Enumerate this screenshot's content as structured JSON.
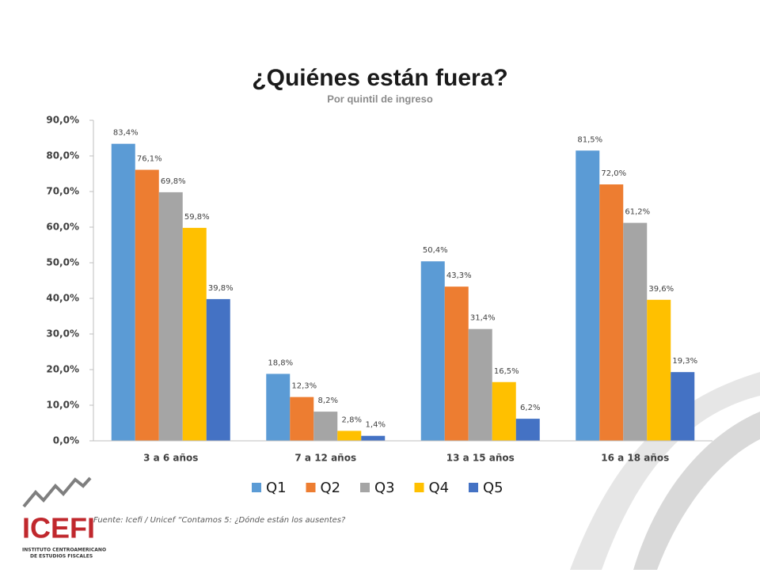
{
  "chart_data": {
    "type": "bar",
    "title": "¿Quiénes están fuera?",
    "subtitle": "Por quintil de ingreso",
    "categories": [
      "3 a 6 años",
      "7 a 12 años",
      "13 a 15 años",
      "16 a 18 años"
    ],
    "series": [
      {
        "name": "Q1",
        "color": "#5b9bd5",
        "values": [
          83.4,
          18.8,
          50.4,
          81.5
        ],
        "value_labels": [
          "83,4%",
          "18,8%",
          "50,4%",
          "81,5%"
        ]
      },
      {
        "name": "Q2",
        "color": "#ed7d31",
        "values": [
          76.1,
          12.3,
          43.3,
          72.0
        ],
        "value_labels": [
          "76,1%",
          "12,3%",
          "43,3%",
          "72,0%"
        ]
      },
      {
        "name": "Q3",
        "color": "#a5a5a5",
        "values": [
          69.8,
          8.2,
          31.4,
          61.2
        ],
        "value_labels": [
          "69,8%",
          "8,2%",
          "31,4%",
          "61,2%"
        ]
      },
      {
        "name": "Q4",
        "color": "#ffc000",
        "values": [
          59.8,
          2.8,
          16.5,
          39.6
        ],
        "value_labels": [
          "59,8%",
          "2,8%",
          "16,5%",
          "39,6%"
        ]
      },
      {
        "name": "Q5",
        "color": "#4472c4",
        "values": [
          39.8,
          1.4,
          6.2,
          19.3
        ],
        "value_labels": [
          "39,8%",
          "1,4%",
          "6,2%",
          "19,3%"
        ]
      }
    ],
    "ylim": [
      0,
      90
    ],
    "yticks": [
      {
        "value": 0,
        "label": "0,0%"
      },
      {
        "value": 10,
        "label": "10,0%"
      },
      {
        "value": 20,
        "label": "20,0%"
      },
      {
        "value": 30,
        "label": "30,0%"
      },
      {
        "value": 40,
        "label": "40,0%"
      },
      {
        "value": 50,
        "label": "50,0%"
      },
      {
        "value": 60,
        "label": "60,0%"
      },
      {
        "value": 70,
        "label": "70,0%"
      },
      {
        "value": 80,
        "label": "80,0%"
      },
      {
        "value": 90,
        "label": "90,0%"
      }
    ],
    "grid": false,
    "legend": "bottom",
    "source": "Fuente: Icefi / Unicef  “Contamos 5: ¿Dónde están los ausentes?"
  },
  "logo": {
    "name": "ICEFI",
    "line1": "INSTITUTO CENTROAMERICANO",
    "line2": "DE ESTUDIOS FISCALES"
  }
}
